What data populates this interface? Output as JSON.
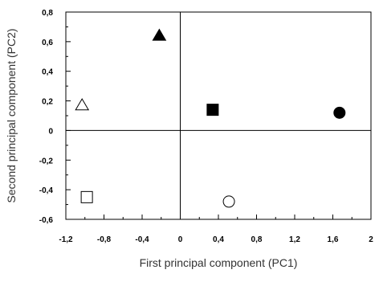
{
  "chart_data": {
    "type": "scatter",
    "title": "",
    "xlabel": "First principal component (PC1)",
    "ylabel": "Second principal component (PC2)",
    "xlim": [
      -1.2,
      2
    ],
    "ylim": [
      -0.6,
      0.8
    ],
    "x_ticks": [
      -1.2,
      -0.8,
      -0.4,
      0,
      0.4,
      0.8,
      1.2,
      1.6,
      2
    ],
    "x_tick_labels": [
      "-1,2",
      "-0,8",
      "-0,4",
      "0",
      "0,4",
      "0,8",
      "1,2",
      "1,6",
      "2"
    ],
    "y_ticks": [
      0.8,
      0.6,
      0.4,
      0.2,
      0,
      -0.2,
      -0.4,
      -0.6
    ],
    "y_tick_labels": [
      "0,8",
      "0,6",
      "0,4",
      "0,2",
      "0",
      "-0,2",
      "-0,4",
      "-0,6"
    ],
    "grid": false,
    "zero_lines": true,
    "points": [
      {
        "x": -0.22,
        "y": 0.64,
        "marker": "triangle",
        "filled": true
      },
      {
        "x": -1.03,
        "y": 0.17,
        "marker": "triangle",
        "filled": false
      },
      {
        "x": 0.34,
        "y": 0.14,
        "marker": "square",
        "filled": true
      },
      {
        "x": 1.67,
        "y": 0.12,
        "marker": "circle",
        "filled": true
      },
      {
        "x": -0.98,
        "y": -0.45,
        "marker": "square",
        "filled": false
      },
      {
        "x": 0.51,
        "y": -0.48,
        "marker": "circle",
        "filled": false
      }
    ]
  }
}
